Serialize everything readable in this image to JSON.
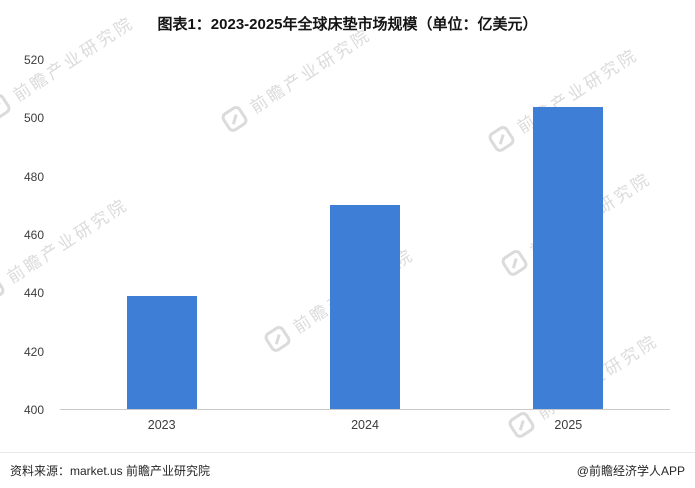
{
  "title": "图表1：2023-2025年全球床垫市场规模（单位：亿美元）",
  "chart_data": {
    "type": "bar",
    "categories": [
      "2023",
      "2024",
      "2025"
    ],
    "values": [
      439,
      470,
      504
    ],
    "title": "图表1：2023-2025年全球床垫市场规模（单位：亿美元）",
    "xlabel": "",
    "ylabel": "",
    "ylim": [
      400,
      520
    ],
    "yticks": [
      400,
      420,
      440,
      460,
      480,
      500,
      520
    ],
    "bar_color": "#3E7ED6",
    "grid": false,
    "legend": "none"
  },
  "watermark": {
    "text": "前瞻产业研究院"
  },
  "footer": {
    "source": "资料来源：market.us  前瞻产业研究院",
    "credit": "@前瞻经济学人APP"
  }
}
